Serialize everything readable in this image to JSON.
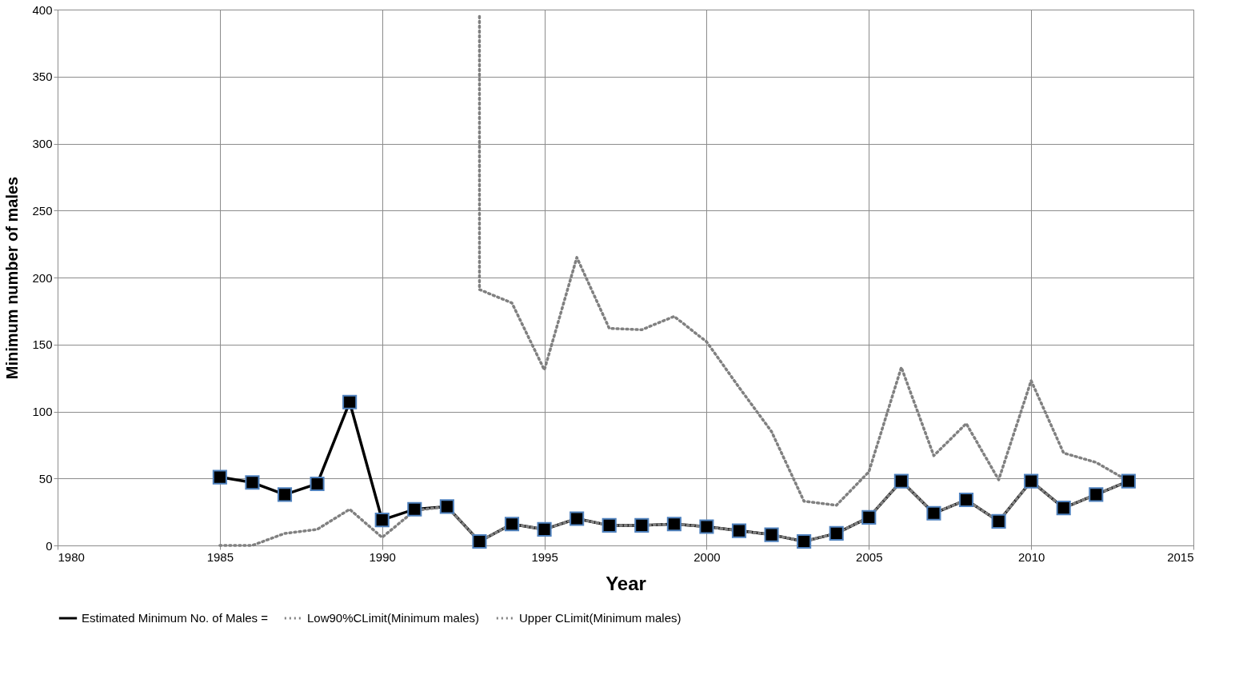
{
  "chart_data": {
    "type": "line",
    "xlabel": "Year",
    "ylabel": "Minimum number of males",
    "xlim": [
      1980,
      2015
    ],
    "xticks": [
      1980,
      1985,
      1990,
      1995,
      2000,
      2005,
      2010,
      2015
    ],
    "ylim": [
      0,
      400
    ],
    "yticks": [
      0,
      50,
      100,
      150,
      200,
      250,
      300,
      350,
      400
    ],
    "grid": true,
    "legend": "bottom",
    "series": [
      {
        "name": "Estimated Minimum No. of Males =",
        "color": "#000000",
        "line_style": "solid",
        "marker": "square",
        "x": [
          1985,
          1986,
          1987,
          1988,
          1989,
          1990,
          1991,
          1992,
          1993,
          1994,
          1995,
          1996,
          1997,
          1998,
          1999,
          2000,
          2001,
          2002,
          2003,
          2004,
          2005,
          2006,
          2007,
          2008,
          2009,
          2010,
          2011,
          2012,
          2013
        ],
        "values": [
          51,
          47,
          38,
          46,
          107,
          19,
          27,
          29,
          3,
          16,
          12,
          20,
          15,
          15,
          16,
          14,
          11,
          8,
          3,
          9,
          21,
          48,
          24,
          34,
          18,
          48,
          28,
          38,
          48
        ]
      },
      {
        "name": "Low90%CLimit(Minimum males)",
        "color": "#808080",
        "line_style": "dotted",
        "marker": "none",
        "x": [
          1985,
          1986,
          1987,
          1988,
          1989,
          1990,
          1991,
          1992,
          1993,
          1994,
          1995,
          1996,
          1997,
          1998,
          1999,
          2000,
          2001,
          2002,
          2003,
          2004,
          2005,
          2006,
          2007,
          2008,
          2009,
          2010,
          2011,
          2012,
          2013
        ],
        "values": [
          0,
          0,
          9,
          12,
          27,
          6,
          26,
          29,
          3,
          16,
          12,
          20,
          15,
          15,
          16,
          14,
          11,
          8,
          3,
          9,
          21,
          48,
          24,
          34,
          18,
          48,
          28,
          38,
          48
        ]
      },
      {
        "name": "Upper CLimit(Minimum males)",
        "color": "#808080",
        "line_style": "dotted",
        "marker": "none",
        "x": [
          1993,
          1993,
          1994,
          1995,
          1996,
          1997,
          1998,
          1999,
          2000,
          2001,
          2002,
          2003,
          2004,
          2005,
          2006,
          2007,
          2008,
          2009,
          2010,
          2011,
          2012,
          2013
        ],
        "values": [
          395,
          191,
          181,
          131,
          215,
          162,
          161,
          171,
          152,
          118,
          85,
          33,
          30,
          55,
          133,
          67,
          91,
          49,
          123,
          69,
          62,
          48
        ]
      }
    ]
  }
}
